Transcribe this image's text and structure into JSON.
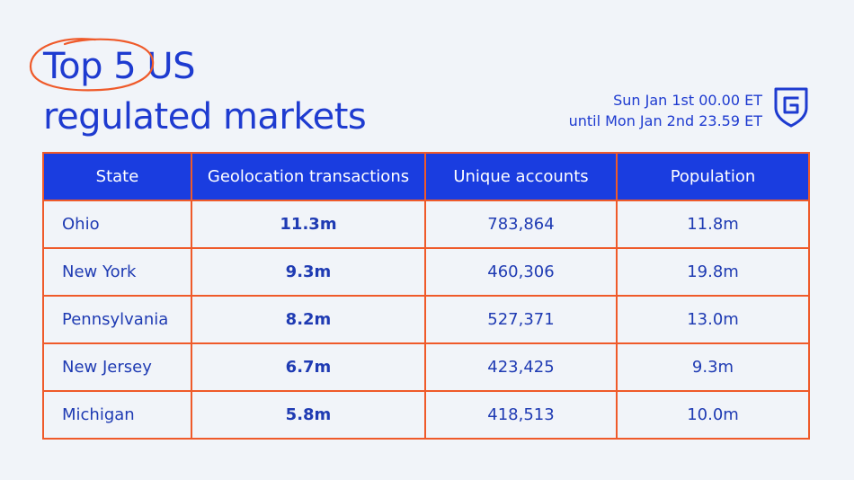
{
  "title": {
    "highlight": "Top 5",
    "rest_line1": " US",
    "line2": "regulated markets"
  },
  "date_range": {
    "line1": "Sun Jan 1st 00.00 ET",
    "line2": "until Mon Jan 2nd 23.59 ET"
  },
  "logo": {
    "icon": "shield-g-logo"
  },
  "colors": {
    "accent": "#1e3bd0",
    "border": "#ef5a2a",
    "background": "#f1f4f9"
  },
  "table": {
    "headers": [
      "State",
      "Geolocation transactions",
      "Unique accounts",
      "Population"
    ],
    "rows": [
      {
        "state": "Ohio",
        "geolocation": "11.3m",
        "accounts": "783,864",
        "population": "11.8m"
      },
      {
        "state": "New York",
        "geolocation": "9.3m",
        "accounts": "460,306",
        "population": "19.8m"
      },
      {
        "state": "Pennsylvania",
        "geolocation": "8.2m",
        "accounts": "527,371",
        "population": "13.0m"
      },
      {
        "state": "New Jersey",
        "geolocation": "6.7m",
        "accounts": "423,425",
        "population": "9.3m"
      },
      {
        "state": "Michigan",
        "geolocation": "5.8m",
        "accounts": "418,513",
        "population": "10.0m"
      }
    ]
  }
}
